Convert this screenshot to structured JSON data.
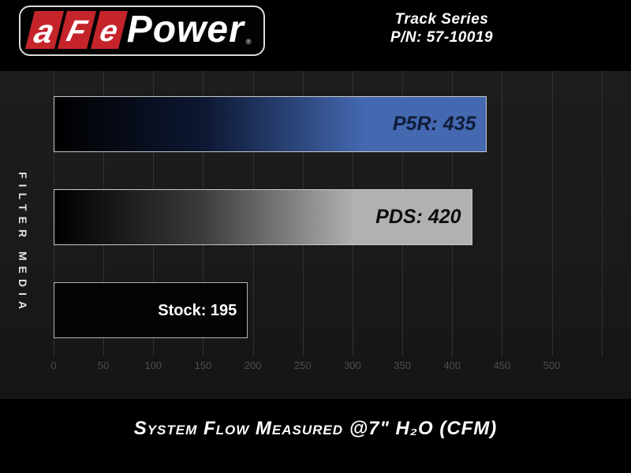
{
  "header": {
    "logo": {
      "a": "a",
      "f": "F",
      "e": "e",
      "power": "Power",
      "registered": "®"
    },
    "product_line1": "Track Series",
    "product_line2": "P/N: 57-10019"
  },
  "y_axis_label": "FILTER MEDIA",
  "caption": "System Flow Measured @7\" H₂O (CFM)",
  "chart_data": {
    "type": "bar",
    "orientation": "horizontal",
    "title": "Track Series P/N: 57-10019",
    "xlabel": "System Flow Measured @7\" H₂O (CFM)",
    "ylabel": "FILTER MEDIA",
    "categories": [
      "P5R",
      "PDS",
      "Stock"
    ],
    "values": [
      435,
      420,
      195
    ],
    "value_labels": [
      "P5R: 435",
      "PDS: 420",
      "Stock: 195"
    ],
    "xlim": [
      0,
      550
    ],
    "tick_values": [
      0,
      50,
      100,
      150,
      200,
      250,
      300,
      350,
      400,
      450,
      500
    ],
    "tick_labels": [
      "0",
      "50",
      "100",
      "150",
      "200",
      "250",
      "300",
      "350",
      "400",
      "450",
      "500"
    ],
    "gridlines": [
      0,
      50,
      100,
      150,
      200,
      250,
      300,
      350,
      400,
      450,
      500,
      550
    ],
    "grid": true,
    "legend": false,
    "background_color": "#1a1a1a",
    "bar_styles": [
      {
        "gradient": [
          "#000000 0%",
          "#0d1833 35%",
          "#4469b1 72%"
        ],
        "border": "#c9c9c9",
        "text": "#111d38",
        "italic": true,
        "label_size": 25
      },
      {
        "gradient": [
          "#000000 0%",
          "#3a3a3a 35%",
          "#b1b1b1 72%"
        ],
        "border": "#c9c9c9",
        "text": "#0d0d0d",
        "italic": true,
        "label_size": 25
      },
      {
        "fill": "#040404",
        "border": "#b5b5b5",
        "text": "#ffffff",
        "italic": false,
        "label_size": 20
      }
    ]
  }
}
